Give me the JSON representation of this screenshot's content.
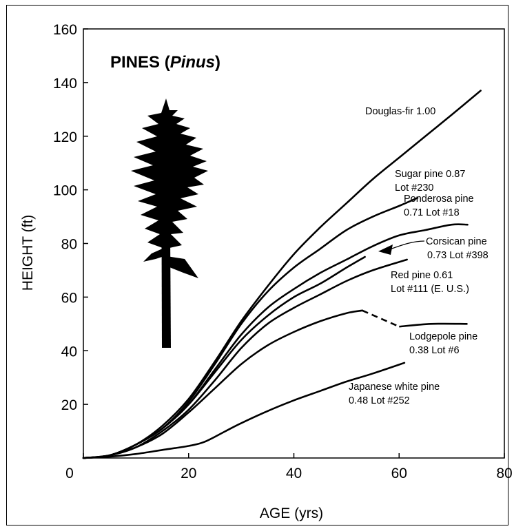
{
  "chart_data": {
    "type": "line",
    "title": "PINES (",
    "title_italic": "Pinus",
    "title_close": ")",
    "xlabel": "AGE (yrs)",
    "ylabel": "HEIGHT (ft)",
    "xlim": [
      0,
      80
    ],
    "ylim": [
      0,
      160
    ],
    "x_ticks": [
      "0",
      "20",
      "40",
      "60",
      "80"
    ],
    "y_ticks": [
      "20",
      "40",
      "60",
      "80",
      "100",
      "120",
      "140",
      "160"
    ],
    "grid": false,
    "line_color": "#000000",
    "illustration": "tree-silhouette",
    "series": [
      {
        "name": "Douglas-fir 1.00",
        "label_lines": [
          "Douglas-fir 1.00"
        ],
        "x": [
          0,
          5,
          10,
          15,
          20,
          25,
          30,
          35,
          40,
          45,
          50,
          55,
          60,
          65,
          70,
          75.5
        ],
        "y": [
          0,
          1,
          5,
          12,
          22,
          36,
          51,
          64,
          76,
          86,
          95,
          104,
          112,
          120,
          128,
          137
        ]
      },
      {
        "name": "Sugar pine 0.87 Lot #230",
        "label_lines": [
          "Sugar pine 0.87",
          "Lot #230"
        ],
        "x": [
          0,
          5,
          10,
          15,
          20,
          25,
          30,
          35,
          40,
          45,
          50,
          55,
          60,
          63.5
        ],
        "y": [
          0,
          1,
          5,
          11,
          21,
          35,
          50,
          62,
          71,
          78,
          85,
          90,
          94,
          97
        ]
      },
      {
        "name": "Ponderosa pine 0.71 Lot #18",
        "label_lines": [
          "Ponderosa pine",
          "0.71 Lot #18"
        ],
        "x": [
          0,
          5,
          10,
          15,
          20,
          25,
          30,
          35,
          40,
          45,
          50,
          55,
          60,
          65,
          70,
          73
        ],
        "y": [
          0,
          1,
          5,
          11,
          20,
          33,
          46,
          56,
          63,
          69,
          74,
          79,
          83,
          85,
          87,
          87
        ]
      },
      {
        "name": "Corsican pine 0.73 Lot #398",
        "label_lines": [
          "Corsican pine",
          "0.73 Lot #398"
        ],
        "x": [
          0,
          5,
          10,
          15,
          20,
          25,
          30,
          35,
          40,
          45,
          50,
          53.5
        ],
        "y": [
          0,
          1,
          5,
          11,
          20,
          32,
          44,
          53,
          60,
          65,
          71,
          75
        ]
      },
      {
        "name": "Red pine 0.61 Lot #111 (E. U.S.)",
        "label_lines": [
          "Red pine 0.61",
          "Lot #111 (E. U.S.)"
        ],
        "x": [
          0,
          5,
          10,
          15,
          20,
          25,
          30,
          35,
          40,
          45,
          50,
          55,
          61.5
        ],
        "y": [
          0,
          1,
          4,
          10,
          18,
          29,
          41,
          50,
          56,
          61,
          66,
          70,
          74
        ]
      },
      {
        "name": "Lodgepole pine 0.38 Lot #6",
        "label_lines": [
          "Lodgepole pine",
          "0.38 Lot #6"
        ],
        "x": [
          0,
          5,
          10,
          15,
          20,
          25,
          30,
          35,
          40,
          45,
          50,
          53
        ],
        "y": [
          0,
          1,
          4,
          9,
          17,
          26,
          35,
          42,
          47,
          51,
          54,
          55
        ],
        "dashed_x": [
          53,
          60
        ],
        "dashed_y": [
          55,
          49
        ],
        "tail_x": [
          60,
          66,
          73
        ],
        "tail_y": [
          49,
          50,
          50
        ]
      },
      {
        "name": "Japanese white pine 0.48 Lot #252",
        "label_lines": [
          "Japanese white pine",
          "0.48 Lot #252"
        ],
        "x": [
          0,
          5,
          10,
          15,
          20,
          23,
          27,
          30,
          35,
          40,
          45,
          50,
          55,
          61
        ],
        "y": [
          0,
          0.5,
          1.5,
          3,
          4.5,
          6,
          10,
          13,
          17.5,
          21.5,
          25,
          28.5,
          31.5,
          35.5
        ]
      }
    ]
  }
}
